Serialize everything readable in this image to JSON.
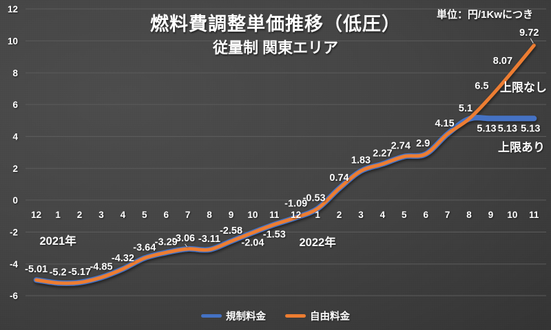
{
  "chart": {
    "title": "燃料費調整単価推移（低圧）",
    "subtitle": "従量制 関東エリア",
    "unit_note": "単位：円/1Kwにつき"
  },
  "chart_data": {
    "type": "line",
    "title": "燃料費調整単価推移（低圧）",
    "subtitle": "従量制 関東エリア",
    "unit_note": "単位：円/1Kwにつき",
    "x_categories": [
      "12",
      "1",
      "2",
      "3",
      "4",
      "5",
      "6",
      "7",
      "8",
      "9",
      "10",
      "11",
      "12",
      "1",
      "2",
      "3",
      "4",
      "5",
      "6",
      "7",
      "8",
      "9",
      "10",
      "11"
    ],
    "year_labels": [
      "2021年",
      "2022年"
    ],
    "ylim": [
      -6,
      12
    ],
    "ytick_step": 2,
    "grid": true,
    "smooth_lines": true,
    "legend_position": "bottom",
    "series": [
      {
        "name": "規制料金",
        "color": "#4472C4",
        "cap_note": "上限あり",
        "values": [
          -5.01,
          -5.2,
          -5.17,
          -4.85,
          -4.32,
          -3.64,
          -3.29,
          -3.06,
          -3.11,
          -2.58,
          -2.04,
          -1.53,
          -1.09,
          -0.53,
          0.74,
          1.83,
          2.27,
          2.74,
          2.9,
          4.15,
          5.1,
          5.13,
          5.13,
          5.13
        ]
      },
      {
        "name": "自由料金",
        "color": "#ED7D31",
        "cap_note": "上限なし",
        "values": [
          -5.01,
          -5.2,
          -5.17,
          -4.85,
          -4.32,
          -3.64,
          -3.29,
          -3.06,
          -3.11,
          -2.58,
          -2.04,
          -1.53,
          -1.09,
          -0.53,
          0.74,
          1.83,
          2.27,
          2.74,
          2.9,
          4.15,
          5.1,
          6.5,
          8.07,
          9.72
        ]
      }
    ],
    "point_labels": [
      {
        "i": 0,
        "text": "-5.01",
        "pos": "above"
      },
      {
        "i": 1,
        "text": "-5.2",
        "pos": "above"
      },
      {
        "i": 2,
        "text": "-5.17",
        "pos": "above"
      },
      {
        "i": 3,
        "text": "-4.85",
        "pos": "above"
      },
      {
        "i": 4,
        "text": "-4.32",
        "pos": "above"
      },
      {
        "i": 5,
        "text": "-3.64",
        "pos": "above"
      },
      {
        "i": 6,
        "text": "-3.29",
        "pos": "above"
      },
      {
        "i": 7,
        "text": "-3.06",
        "pos": "above",
        "leader": true
      },
      {
        "i": 8,
        "text": "-3.11",
        "pos": "above"
      },
      {
        "i": 9,
        "text": "-2.58",
        "pos": "above"
      },
      {
        "i": 10,
        "text": "-2.04",
        "pos": "below"
      },
      {
        "i": 11,
        "text": "-1.53",
        "pos": "below"
      },
      {
        "i": 12,
        "text": "-1.09",
        "pos": "above"
      },
      {
        "i": 13,
        "text": "-0.53",
        "pos": "above"
      },
      {
        "i": 14,
        "text": "0.74",
        "pos": "above"
      },
      {
        "i": 15,
        "text": "1.83",
        "pos": "above"
      },
      {
        "i": 16,
        "text": "2.27",
        "pos": "above"
      },
      {
        "i": 17,
        "text": "2.74",
        "pos": "above"
      },
      {
        "i": 18,
        "text": "2.9",
        "pos": "above"
      },
      {
        "i": 19,
        "text": "4.15",
        "pos": "above"
      },
      {
        "i": 20,
        "text": "5.1",
        "pos": "above"
      },
      {
        "i": 21,
        "series": 1,
        "text": "6.5",
        "pos": "above"
      },
      {
        "i": 22,
        "series": 1,
        "text": "8.07",
        "pos": "above"
      },
      {
        "i": 23,
        "series": 1,
        "text": "9.72",
        "pos": "above",
        "leader": true
      },
      {
        "i": 21,
        "series": 0,
        "text": "5.13",
        "pos": "below"
      },
      {
        "i": 22,
        "series": 0,
        "text": "5.13",
        "pos": "below"
      },
      {
        "i": 23,
        "series": 0,
        "text": "5.13",
        "pos": "below"
      }
    ]
  }
}
